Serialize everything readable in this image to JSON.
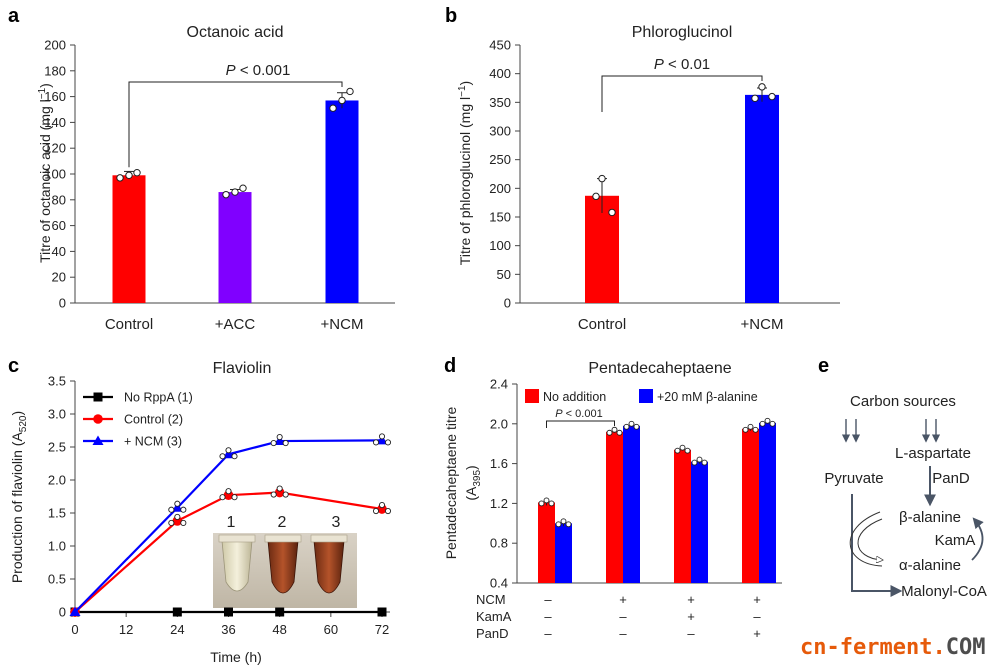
{
  "chart_data": [
    {
      "panel": "a",
      "type": "bar",
      "title": "Octanoic acid",
      "ylabel": "Titre of octanoic acid (mg l",
      "ylabel_sup": "−1",
      "ylabel_end": ")",
      "ylim": [
        0,
        200
      ],
      "yticks": [
        0,
        20,
        40,
        60,
        80,
        100,
        120,
        140,
        160,
        180,
        200
      ],
      "categories": [
        "Control",
        "+ACC",
        "+NCM"
      ],
      "values": [
        99,
        86,
        157
      ],
      "errors": [
        3,
        2,
        6
      ],
      "colors": [
        "#ff0000",
        "#8000ff",
        "#0000ff"
      ],
      "points": [
        [
          97,
          99,
          101
        ],
        [
          84,
          86,
          89
        ],
        [
          151,
          157,
          164
        ]
      ],
      "significance": {
        "from": 0,
        "to": 2,
        "p": "P",
        "rest": " < 0.001"
      }
    },
    {
      "panel": "b",
      "type": "bar",
      "title": "Phloroglucinol",
      "ylabel": "Titre of phloroglucinol (mg l",
      "ylabel_sup": "−1",
      "ylabel_end": ")",
      "ylim": [
        0,
        450
      ],
      "yticks": [
        0,
        50,
        100,
        150,
        200,
        250,
        300,
        350,
        400,
        450
      ],
      "categories": [
        "Control",
        "+NCM"
      ],
      "values": [
        187,
        363
      ],
      "errors": [
        30,
        12
      ],
      "colors": [
        "#ff0000",
        "#0000ff"
      ],
      "points": [
        [
          158,
          186,
          217
        ],
        [
          357,
          360,
          377
        ]
      ],
      "significance": {
        "from": 0,
        "to": 1,
        "p": "P",
        "rest": " < 0.01"
      }
    },
    {
      "panel": "c",
      "type": "line",
      "title": "Flaviolin",
      "xlabel": "Time (h)",
      "ylabel": "Production of flaviolin (A",
      "ylabel_sub": "520",
      "ylabel_end": ")",
      "xlim": [
        0,
        72
      ],
      "xticks": [
        0,
        12,
        24,
        36,
        48,
        60,
        72
      ],
      "ylim": [
        0,
        3.5
      ],
      "yticks": [
        "0",
        "0.5",
        "1.0",
        "1.5",
        "2.0",
        "2.5",
        "3.0",
        "3.5"
      ],
      "x": [
        0,
        24,
        36,
        48,
        72
      ],
      "series": [
        {
          "name": "No RppA (1)",
          "color": "#000000",
          "marker": "square",
          "values": [
            0,
            0,
            0,
            0,
            0
          ]
        },
        {
          "name": "Control (2)",
          "color": "#ff0000",
          "marker": "circle",
          "values": [
            0,
            1.38,
            1.77,
            1.81,
            1.56
          ]
        },
        {
          "name": "+ NCM (3)",
          "color": "#0000ff",
          "marker": "triangle",
          "values": [
            0,
            1.58,
            2.39,
            2.59,
            2.6
          ]
        }
      ],
      "inset_labels": [
        {
          "text": "1",
          "color": "#000000"
        },
        {
          "text": "2",
          "color": "#d32f2f"
        },
        {
          "text": "3",
          "color": "#2727d8"
        }
      ]
    },
    {
      "panel": "d",
      "type": "bar",
      "title": "Pentadecaheptaene",
      "ylabel": "Pentadecaheptaene titre",
      "ylabel2": "(A",
      "ylabel2_sub": "395",
      "ylabel2_end": ")",
      "ylim": [
        0.4,
        2.4
      ],
      "yticks": [
        "0.4",
        "0.8",
        "1.2",
        "1.6",
        "2.0",
        "2.4"
      ],
      "series": [
        {
          "name": "No addition",
          "color": "#ff0000",
          "values": [
            1.21,
            1.92,
            1.74,
            1.95
          ],
          "errors": [
            0.03,
            0.01,
            0.01,
            0.02
          ]
        },
        {
          "name": "+20 mM β-alanine",
          "color": "#0000ff",
          "values": [
            1.0,
            1.98,
            1.62,
            2.01
          ],
          "errors": [
            0.03,
            0.01,
            0.02,
            0.01
          ]
        }
      ],
      "conditions": [
        {
          "label": "NCM",
          "values": [
            "–",
            "+",
            "+",
            "+"
          ]
        },
        {
          "label": "KamA",
          "values": [
            "–",
            "–",
            "+",
            "–"
          ]
        },
        {
          "label": "PanD",
          "values": [
            "–",
            "–",
            "–",
            "+"
          ]
        }
      ],
      "significance": {
        "p": "P",
        "rest": " < 0.001"
      }
    }
  ],
  "pathway": {
    "panel": "e",
    "nodes": {
      "carbon": "Carbon sources",
      "aspartate": "L-aspartate",
      "pyruvate": "Pyruvate",
      "pand": "PanD",
      "balanine": "β-alanine",
      "kama": "KamA",
      "aalanine": "α-alanine",
      "malonyl": "Malonyl-CoA"
    }
  },
  "panel_labels": [
    "a",
    "b",
    "c",
    "d",
    "e"
  ],
  "watermark": {
    "main": "cn-ferment",
    "dot": ".",
    "tld": "COM"
  }
}
